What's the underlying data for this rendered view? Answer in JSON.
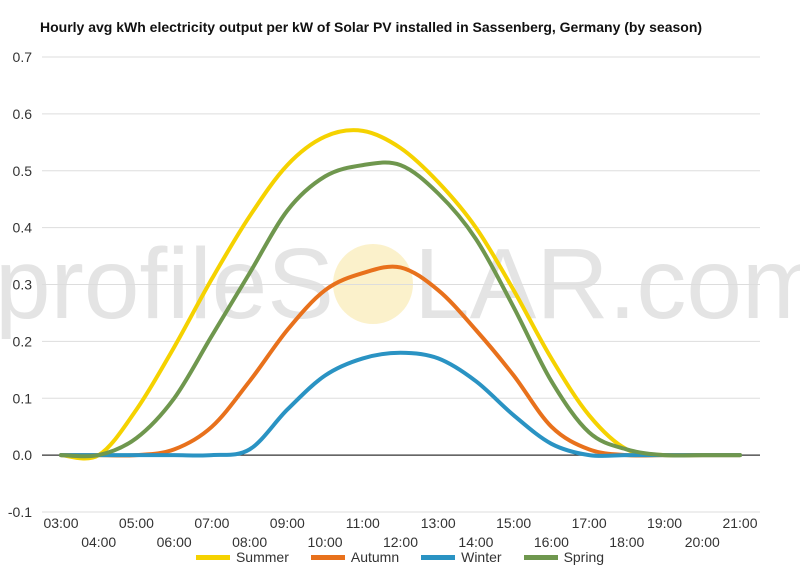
{
  "chart_data": {
    "type": "line",
    "title": "Hourly avg kWh electricity output per kW of Solar PV installed in Sassenberg, Germany (by season)",
    "xlabel": "",
    "ylabel": "",
    "x": [
      "03:00",
      "04:00",
      "05:00",
      "06:00",
      "07:00",
      "08:00",
      "09:00",
      "10:00",
      "11:00",
      "12:00",
      "13:00",
      "14:00",
      "15:00",
      "16:00",
      "17:00",
      "18:00",
      "19:00",
      "20:00",
      "21:00"
    ],
    "ylim": [
      -0.1,
      0.7
    ],
    "yticks": [
      -0.1,
      0.0,
      0.1,
      0.2,
      0.3,
      0.4,
      0.5,
      0.6,
      0.7
    ],
    "yticks_labels": [
      "-0.1",
      "0.0",
      "0.1",
      "0.2",
      "0.3",
      "0.4",
      "0.5",
      "0.6",
      "0.7"
    ],
    "grid": true,
    "legend_position": "bottom",
    "series": [
      {
        "name": "Summer",
        "color": "#f5d200",
        "values": [
          0.0,
          0.0,
          0.08,
          0.19,
          0.31,
          0.42,
          0.51,
          0.56,
          0.57,
          0.54,
          0.48,
          0.4,
          0.29,
          0.17,
          0.07,
          0.01,
          0.0,
          0.0,
          0.0
        ]
      },
      {
        "name": "Autumn",
        "color": "#e8711c",
        "values": [
          0.0,
          0.0,
          0.0,
          0.01,
          0.05,
          0.13,
          0.22,
          0.29,
          0.32,
          0.33,
          0.29,
          0.22,
          0.14,
          0.05,
          0.01,
          0.0,
          0.0,
          0.0,
          0.0
        ]
      },
      {
        "name": "Winter",
        "color": "#2a93c3",
        "values": [
          0.0,
          0.0,
          0.0,
          0.0,
          0.0,
          0.01,
          0.08,
          0.14,
          0.17,
          0.18,
          0.17,
          0.13,
          0.07,
          0.02,
          0.0,
          0.0,
          0.0,
          0.0,
          0.0
        ]
      },
      {
        "name": "Spring",
        "color": "#6f974e",
        "values": [
          0.0,
          0.0,
          0.03,
          0.1,
          0.21,
          0.32,
          0.43,
          0.49,
          0.51,
          0.51,
          0.46,
          0.38,
          0.26,
          0.13,
          0.04,
          0.01,
          0.0,
          0.0,
          0.0
        ]
      }
    ]
  },
  "watermark": {
    "text_before": "profileS",
    "text_after": "LAR.com"
  }
}
